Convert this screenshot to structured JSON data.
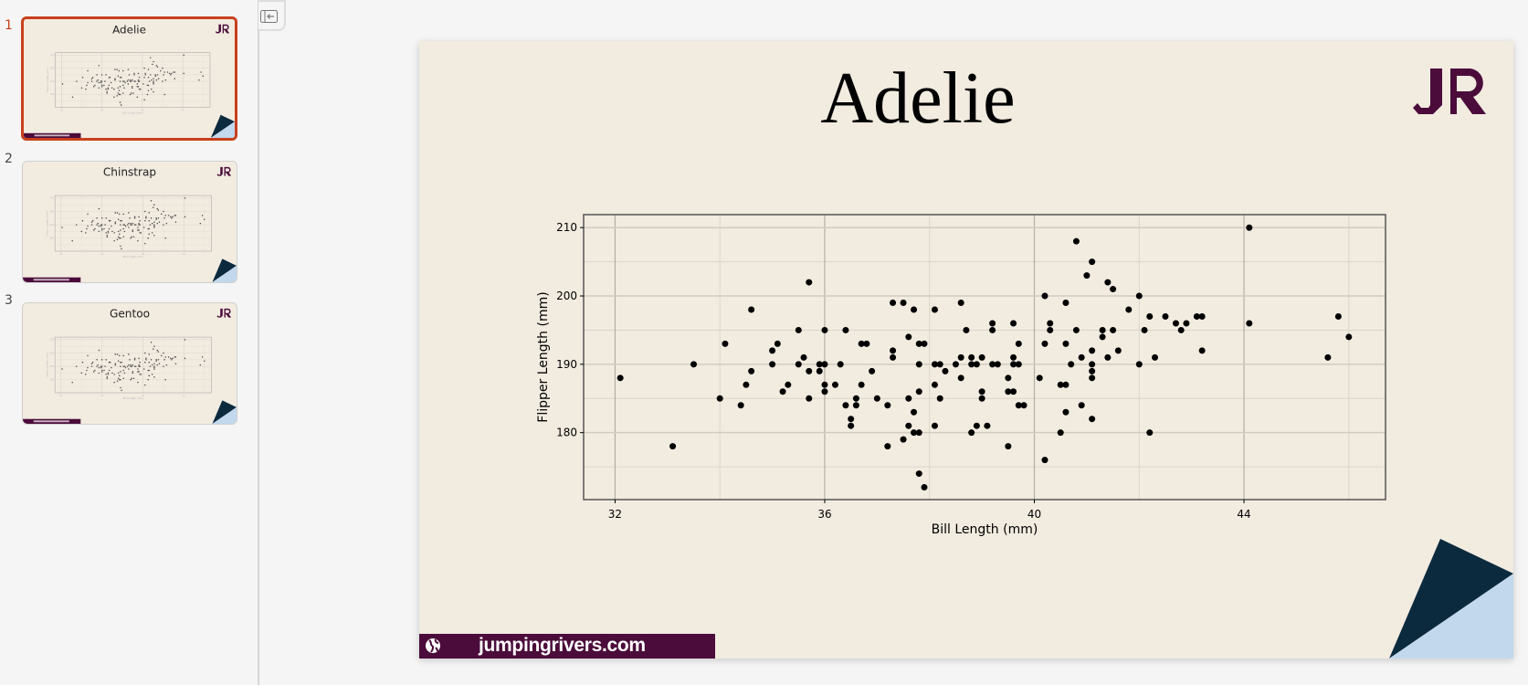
{
  "slides": [
    {
      "number": "1",
      "title": "Adelie",
      "active": true
    },
    {
      "number": "2",
      "title": "Chinstrap",
      "active": false
    },
    {
      "number": "3",
      "title": "Gentoo",
      "active": false
    }
  ],
  "toolbar": {
    "toggle_panel_icon": "sidebar-collapse-icon"
  },
  "slide": {
    "title": "Adelie",
    "logo_text": "JR",
    "footer_text": "jumpingrivers.com",
    "footer_icon": "globe-icon"
  },
  "colors": {
    "slide_bg": "#f2ebe0",
    "brand": "#4b0c3b",
    "triangle_dark": "#0c2a3e",
    "triangle_light": "#c2d8ec",
    "selection": "#c8401c",
    "points": "#000000"
  },
  "chart_data": {
    "type": "scatter",
    "title": "",
    "xlabel": "Bill Length (mm)",
    "ylabel": "Flipper Length (mm)",
    "xlim": [
      31.4,
      46.7
    ],
    "ylim": [
      170.2,
      211.9
    ],
    "xticks": [
      32,
      36,
      40,
      44
    ],
    "yticks": [
      180,
      190,
      200,
      210
    ],
    "grid": true,
    "points": [
      [
        32.1,
        188
      ],
      [
        33.1,
        178
      ],
      [
        33.5,
        190
      ],
      [
        34.0,
        185
      ],
      [
        34.1,
        193
      ],
      [
        34.4,
        184
      ],
      [
        34.5,
        187
      ],
      [
        34.6,
        198
      ],
      [
        34.6,
        189
      ],
      [
        35.0,
        192
      ],
      [
        35.0,
        190
      ],
      [
        35.1,
        193
      ],
      [
        35.2,
        186
      ],
      [
        35.3,
        187
      ],
      [
        35.5,
        195
      ],
      [
        35.5,
        190
      ],
      [
        35.6,
        191
      ],
      [
        35.7,
        202
      ],
      [
        35.7,
        189
      ],
      [
        35.7,
        185
      ],
      [
        35.9,
        190
      ],
      [
        35.9,
        189
      ],
      [
        36.0,
        195
      ],
      [
        36.0,
        190
      ],
      [
        36.0,
        187
      ],
      [
        36.0,
        186
      ],
      [
        36.2,
        187
      ],
      [
        36.3,
        190
      ],
      [
        36.4,
        195
      ],
      [
        36.4,
        184
      ],
      [
        36.5,
        182
      ],
      [
        36.5,
        181
      ],
      [
        36.6,
        185
      ],
      [
        36.6,
        184
      ],
      [
        36.7,
        193
      ],
      [
        36.7,
        187
      ],
      [
        36.8,
        193
      ],
      [
        36.9,
        189
      ],
      [
        37.0,
        185
      ],
      [
        37.2,
        184
      ],
      [
        37.2,
        178
      ],
      [
        37.3,
        199
      ],
      [
        37.3,
        192
      ],
      [
        37.3,
        191
      ],
      [
        37.5,
        199
      ],
      [
        37.5,
        179
      ],
      [
        37.6,
        194
      ],
      [
        37.6,
        185
      ],
      [
        37.6,
        181
      ],
      [
        37.7,
        198
      ],
      [
        37.7,
        183
      ],
      [
        37.7,
        180
      ],
      [
        37.8,
        193
      ],
      [
        37.8,
        190
      ],
      [
        37.8,
        186
      ],
      [
        37.8,
        180
      ],
      [
        37.8,
        174
      ],
      [
        37.9,
        172
      ],
      [
        37.9,
        193
      ],
      [
        38.1,
        198
      ],
      [
        38.1,
        190
      ],
      [
        38.1,
        187
      ],
      [
        38.1,
        181
      ],
      [
        38.2,
        190
      ],
      [
        38.2,
        185
      ],
      [
        38.3,
        189
      ],
      [
        38.5,
        190
      ],
      [
        38.6,
        199
      ],
      [
        38.6,
        191
      ],
      [
        38.6,
        188
      ],
      [
        38.7,
        195
      ],
      [
        38.8,
        191
      ],
      [
        38.8,
        190
      ],
      [
        38.8,
        180
      ],
      [
        38.9,
        190
      ],
      [
        38.9,
        181
      ],
      [
        39.0,
        191
      ],
      [
        39.0,
        186
      ],
      [
        39.0,
        185
      ],
      [
        39.1,
        181
      ],
      [
        39.2,
        196
      ],
      [
        39.2,
        195
      ],
      [
        39.2,
        190
      ],
      [
        39.3,
        190
      ],
      [
        39.5,
        188
      ],
      [
        39.5,
        186
      ],
      [
        39.5,
        178
      ],
      [
        39.6,
        196
      ],
      [
        39.6,
        191
      ],
      [
        39.6,
        190
      ],
      [
        39.6,
        186
      ],
      [
        39.7,
        193
      ],
      [
        39.7,
        190
      ],
      [
        39.7,
        184
      ],
      [
        39.8,
        184
      ],
      [
        40.1,
        188
      ],
      [
        40.2,
        200
      ],
      [
        40.2,
        193
      ],
      [
        40.2,
        176
      ],
      [
        40.3,
        196
      ],
      [
        40.3,
        195
      ],
      [
        40.5,
        187
      ],
      [
        40.5,
        180
      ],
      [
        40.6,
        199
      ],
      [
        40.6,
        193
      ],
      [
        40.6,
        187
      ],
      [
        40.6,
        183
      ],
      [
        40.7,
        190
      ],
      [
        40.8,
        208
      ],
      [
        40.8,
        195
      ],
      [
        40.9,
        191
      ],
      [
        40.9,
        184
      ],
      [
        41.0,
        203
      ],
      [
        41.1,
        205
      ],
      [
        41.1,
        192
      ],
      [
        41.1,
        190
      ],
      [
        41.1,
        189
      ],
      [
        41.1,
        188
      ],
      [
        41.1,
        182
      ],
      [
        41.3,
        195
      ],
      [
        41.3,
        194
      ],
      [
        41.4,
        202
      ],
      [
        41.4,
        191
      ],
      [
        41.5,
        201
      ],
      [
        41.5,
        195
      ],
      [
        41.6,
        192
      ],
      [
        41.8,
        198
      ],
      [
        42.0,
        200
      ],
      [
        42.0,
        190
      ],
      [
        42.1,
        195
      ],
      [
        42.2,
        197
      ],
      [
        42.2,
        180
      ],
      [
        42.3,
        191
      ],
      [
        42.5,
        197
      ],
      [
        42.7,
        196
      ],
      [
        42.8,
        195
      ],
      [
        42.9,
        196
      ],
      [
        43.1,
        197
      ],
      [
        43.2,
        197
      ],
      [
        43.2,
        192
      ],
      [
        44.1,
        210
      ],
      [
        44.1,
        196
      ],
      [
        45.6,
        191
      ],
      [
        45.8,
        197
      ],
      [
        46.0,
        194
      ]
    ]
  }
}
